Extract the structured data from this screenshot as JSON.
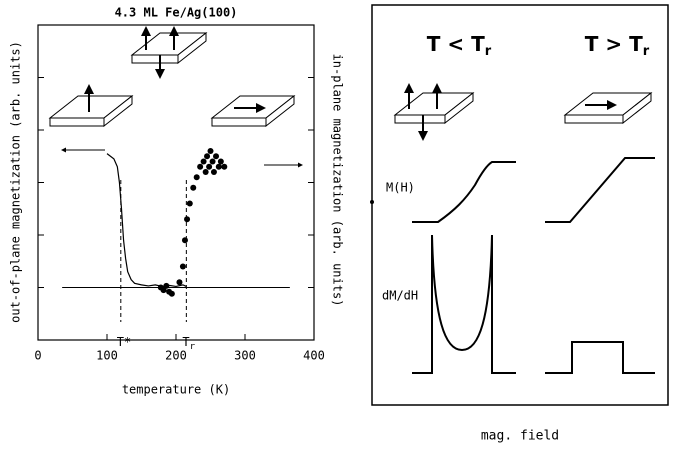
{
  "chart_data": {
    "type": "line",
    "title": "4.3 ML Fe/Ag(100)",
    "x_label": "temperature (K)",
    "y_label": "out-of-plane magnetization (arb. units)",
    "y2_label": "in-plane magnetization (arb. units)",
    "xlim": [
      0,
      400
    ],
    "xticks": [
      0,
      100,
      200,
      300,
      400
    ],
    "ylim": [
      -1,
      5
    ],
    "ytick_marks": [
      0,
      1,
      2,
      3,
      4,
      5
    ],
    "zero_line": {
      "y": 0,
      "xlim": [
        35,
        365
      ]
    },
    "series": [
      {
        "style": "line",
        "color": "#000000",
        "x": [
          100,
          105,
          110,
          115,
          118,
          121,
          124,
          127,
          130,
          135,
          140,
          150,
          160,
          170,
          180,
          190,
          200,
          210,
          215
        ],
        "values": [
          2.55,
          2.5,
          2.45,
          2.3,
          2.0,
          1.5,
          0.9,
          0.55,
          0.3,
          0.15,
          0.08,
          0.05,
          0.03,
          0.05,
          0.02,
          0.04,
          0.02,
          0.05,
          0.02
        ]
      },
      {
        "style": "scatter",
        "color": "#000000",
        "x": [
          178,
          182,
          186,
          190,
          194,
          205,
          210,
          213,
          216,
          220,
          225,
          230,
          235,
          240,
          243,
          245,
          248,
          250,
          253,
          255,
          258,
          262,
          265,
          270
        ],
        "values": [
          0,
          -0.05,
          0.03,
          -0.08,
          -0.12,
          0.1,
          0.4,
          0.9,
          1.3,
          1.6,
          1.9,
          2.1,
          2.3,
          2.4,
          2.2,
          2.5,
          2.3,
          2.6,
          2.4,
          2.2,
          2.5,
          2.3,
          2.4,
          2.3
        ]
      }
    ],
    "markers": [
      {
        "x": 120,
        "label": "T*"
      },
      {
        "x": 215,
        "label": "T",
        "sub": "r"
      }
    ]
  },
  "schematic": {
    "columns": [
      {
        "label": "T < T",
        "sub": "r"
      },
      {
        "label": "T > T",
        "sub": "r"
      }
    ],
    "rows": [
      "M(H)",
      "dM/dH"
    ],
    "x_label": "mag. field"
  }
}
